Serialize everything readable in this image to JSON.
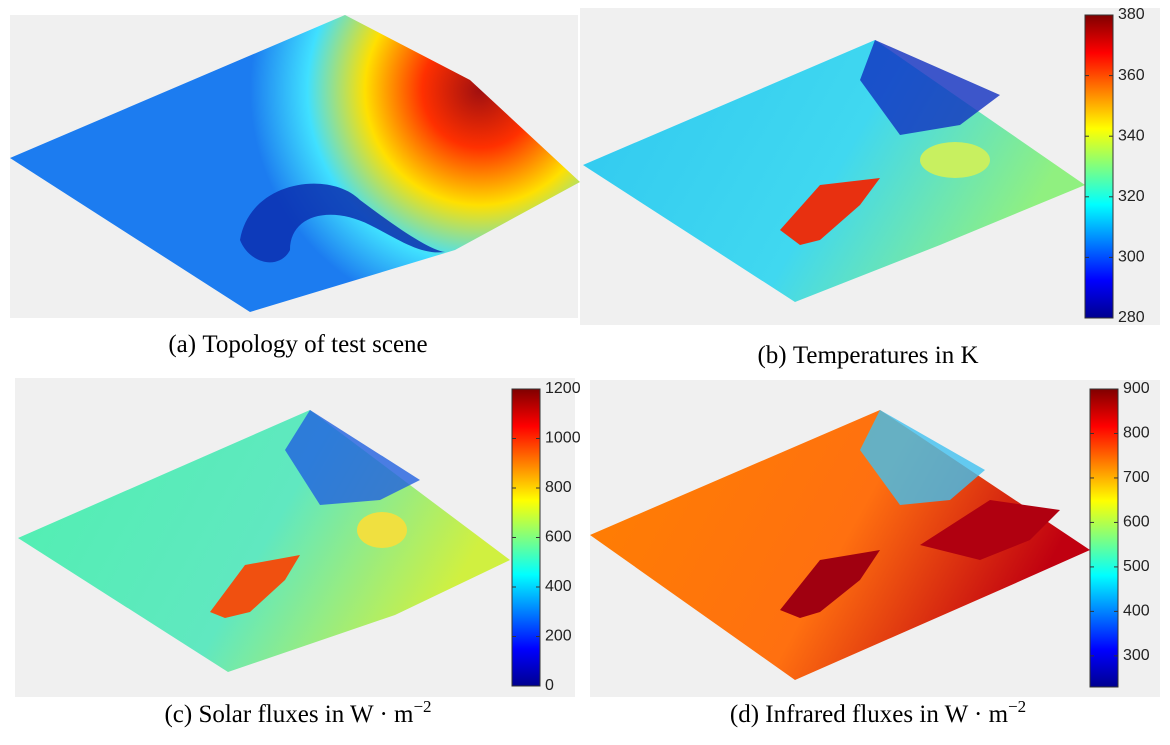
{
  "panels": [
    {
      "label": "(a)",
      "text": "Topology of test scene"
    },
    {
      "label": "(b)",
      "text": "Temperatures in K",
      "colorbar": {
        "lim": [
          280,
          380
        ],
        "ticks": [
          280,
          300,
          320,
          340,
          360,
          380
        ]
      }
    },
    {
      "label": "(c)",
      "text": "Solar fluxes in W · m",
      "superscript": "−2",
      "colorbar": {
        "lim": [
          0,
          1200
        ],
        "ticks": [
          0,
          200,
          400,
          600,
          800,
          1000,
          1200
        ]
      }
    },
    {
      "label": "(d)",
      "text": "Infrared fluxes in W · m",
      "superscript": "−2",
      "colorbar": {
        "lim": [
          230,
          900
        ],
        "ticks": [
          300,
          400,
          500,
          600,
          700,
          800,
          900
        ]
      }
    }
  ]
}
